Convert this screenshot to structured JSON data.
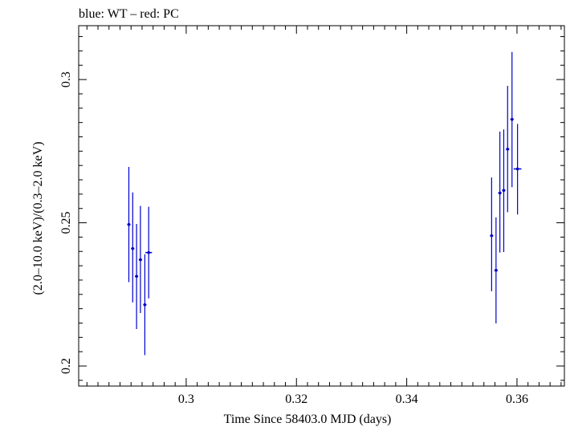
{
  "chart_data": {
    "type": "scatter",
    "title": "blue: WT – red: PC",
    "xlabel": "Time Since 58403.0 MJD (days)",
    "ylabel": "(2.0–10.0 keV)/(0.3–2.0 keV)",
    "xlim": [
      0.2805,
      0.3686
    ],
    "ylim": [
      0.193,
      0.3188
    ],
    "x_ticks": [
      {
        "value": 0.3,
        "label": "0.3"
      },
      {
        "value": 0.32,
        "label": "0.32"
      },
      {
        "value": 0.34,
        "label": "0.34"
      },
      {
        "value": 0.36,
        "label": "0.36"
      }
    ],
    "y_ticks": [
      {
        "value": 0.2,
        "label": "0.2"
      },
      {
        "value": 0.25,
        "label": "0.25"
      },
      {
        "value": 0.3,
        "label": "0.3"
      }
    ],
    "grid": false,
    "series": [
      {
        "name": "WT",
        "color": "#0000cc",
        "points": [
          {
            "x": 0.2896,
            "y": 0.2494,
            "ylo": 0.2293,
            "yhi": 0.2695,
            "xerr": 0.0003
          },
          {
            "x": 0.2903,
            "y": 0.241,
            "ylo": 0.2222,
            "yhi": 0.2606,
            "xerr": 0.0003
          },
          {
            "x": 0.291,
            "y": 0.2313,
            "ylo": 0.2129,
            "yhi": 0.2496,
            "xerr": 0.0003
          },
          {
            "x": 0.2917,
            "y": 0.2371,
            "ylo": 0.2185,
            "yhi": 0.2559,
            "xerr": 0.0003
          },
          {
            "x": 0.2925,
            "y": 0.2214,
            "ylo": 0.2038,
            "yhi": 0.239,
            "xerr": 0.0003
          },
          {
            "x": 0.2932,
            "y": 0.2396,
            "ylo": 0.2236,
            "yhi": 0.2556,
            "xerr": 0.0006
          },
          {
            "x": 0.3554,
            "y": 0.2455,
            "ylo": 0.2261,
            "yhi": 0.2658,
            "xerr": 0.0003
          },
          {
            "x": 0.3562,
            "y": 0.2334,
            "ylo": 0.2149,
            "yhi": 0.2519,
            "xerr": 0.0003
          },
          {
            "x": 0.3569,
            "y": 0.2604,
            "ylo": 0.2396,
            "yhi": 0.2818,
            "xerr": 0.0003
          },
          {
            "x": 0.3576,
            "y": 0.2613,
            "ylo": 0.2398,
            "yhi": 0.2826,
            "xerr": 0.0003
          },
          {
            "x": 0.3583,
            "y": 0.2757,
            "ylo": 0.2537,
            "yhi": 0.2978,
            "xerr": 0.0003
          },
          {
            "x": 0.3591,
            "y": 0.2861,
            "ylo": 0.2624,
            "yhi": 0.3096,
            "xerr": 0.0003
          },
          {
            "x": 0.3601,
            "y": 0.2688,
            "ylo": 0.2529,
            "yhi": 0.2845,
            "xerr": 0.0007
          }
        ]
      }
    ]
  }
}
